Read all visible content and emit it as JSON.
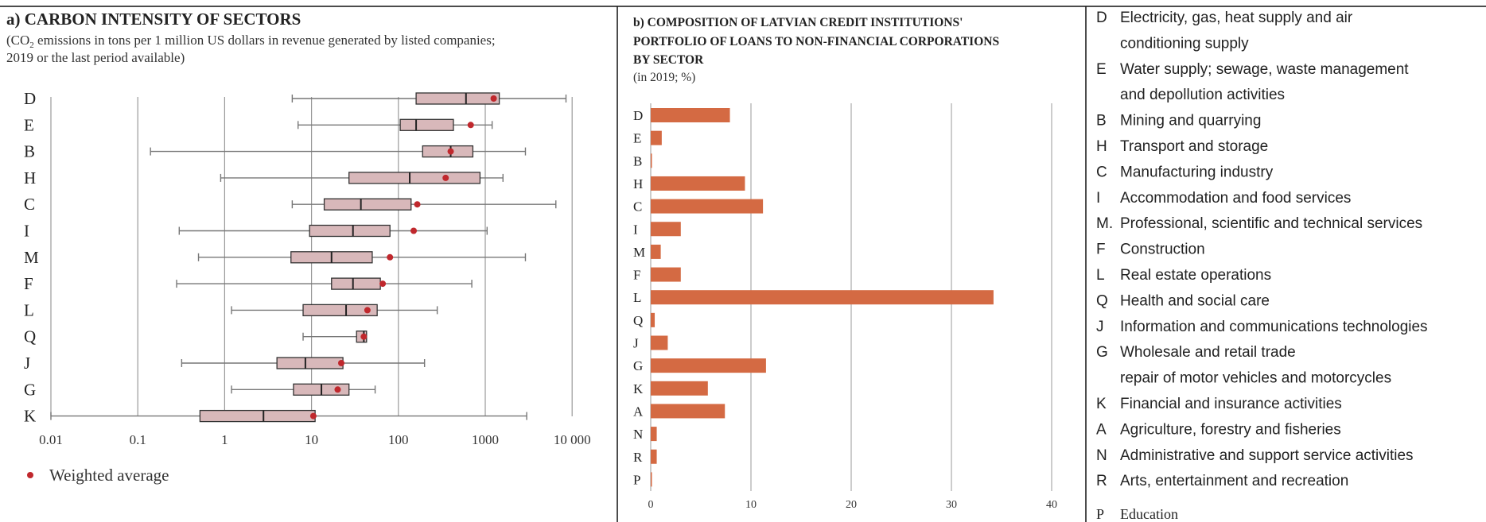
{
  "chart_data": [
    {
      "type": "boxplot",
      "title": "a) CARBON INTENSITY OF SECTORS",
      "subtitle_line1_prefix": "(CO",
      "subtitle_line1_sub": "2",
      "subtitle_line1_suffix": " emissions in tons per 1 million US dollars in revenue generated by listed companies;",
      "subtitle_line2": "2019 or the last period available)",
      "x_scale": "log",
      "xlim": [
        0.01,
        10000
      ],
      "x_ticks": [
        0.01,
        0.1,
        1,
        10,
        100,
        1000,
        10000
      ],
      "x_tick_labels": [
        "0.01",
        "0.1",
        "1",
        "10",
        "100",
        "1000",
        "10 000"
      ],
      "grid": "vertical",
      "legend": {
        "marker": "•",
        "label": "Weighted average",
        "position": "bottom-left"
      },
      "colors": {
        "box_fill": "#d8b8ba",
        "box_stroke": "#333333",
        "whisker": "#777777",
        "average": "#c0282d",
        "grid": "#999999"
      },
      "categories": [
        "D",
        "E",
        "B",
        "H",
        "C",
        "I",
        "M",
        "F",
        "L",
        "Q",
        "J",
        "G",
        "K"
      ],
      "boxes": [
        {
          "min": 6,
          "q1": 160,
          "median": 600,
          "q3": 1450,
          "max": 8500,
          "avg": 1250
        },
        {
          "min": 7,
          "q1": 105,
          "median": 160,
          "q3": 430,
          "max": 1200,
          "avg": 680
        },
        {
          "min": 0.14,
          "q1": 190,
          "median": 400,
          "q3": 720,
          "max": 2900,
          "avg": 400
        },
        {
          "min": 0.9,
          "q1": 27,
          "median": 135,
          "q3": 870,
          "max": 1600,
          "avg": 350
        },
        {
          "min": 6,
          "q1": 14,
          "median": 37,
          "q3": 140,
          "max": 6500,
          "avg": 165
        },
        {
          "min": 0.3,
          "q1": 9.5,
          "median": 30,
          "q3": 80,
          "max": 1050,
          "avg": 150
        },
        {
          "min": 0.5,
          "q1": 5.8,
          "median": 17,
          "q3": 50,
          "max": 2900,
          "avg": 80
        },
        {
          "min": 0.28,
          "q1": 17,
          "median": 30,
          "q3": 62,
          "max": 700,
          "avg": 66
        },
        {
          "min": 1.2,
          "q1": 8,
          "median": 25,
          "q3": 57,
          "max": 280,
          "avg": 44
        },
        {
          "min": 8,
          "q1": 33,
          "median": 40,
          "q3": 43,
          "max": 43,
          "avg": 40
        },
        {
          "min": 0.32,
          "q1": 4,
          "median": 8.5,
          "q3": 23,
          "max": 200,
          "avg": 22
        },
        {
          "min": 1.2,
          "q1": 6.2,
          "median": 13,
          "q3": 27,
          "max": 54,
          "avg": 20
        },
        {
          "min": 0.01,
          "q1": 0.52,
          "median": 2.8,
          "q3": 11,
          "max": 3000,
          "avg": 10.5
        }
      ]
    },
    {
      "type": "bar",
      "orientation": "horizontal",
      "title_line1": "b) COMPOSITION OF LATVIAN CREDIT INSTITUTIONS'",
      "title_line2": "PORTFOLIO OF LOANS TO NON-FINANCIAL CORPORATIONS",
      "title_line3": "BY SECTOR",
      "subtitle": "(in 2019; %)",
      "categories": [
        "D",
        "E",
        "B",
        "H",
        "C",
        "I",
        "M",
        "F",
        "L",
        "Q",
        "J",
        "G",
        "K",
        "A",
        "N",
        "R",
        "P"
      ],
      "values": [
        7.9,
        1.1,
        0.1,
        9.4,
        11.2,
        3.0,
        1.0,
        3.0,
        34.2,
        0.4,
        1.7,
        11.5,
        5.7,
        7.4,
        0.6,
        0.6,
        0.1
      ],
      "xlim": [
        0,
        40
      ],
      "x_ticks": [
        0,
        10,
        20,
        30,
        40
      ],
      "x_tick_labels": [
        "0",
        "10",
        "20",
        "30",
        "40"
      ],
      "grid": "vertical",
      "colors": {
        "bar": "#d46a43",
        "grid": "#aaaaaa"
      }
    }
  ],
  "legend_panel": {
    "items": [
      {
        "code": "D",
        "lines": [
          "Electricity, gas, heat supply and air",
          "conditioning supply"
        ]
      },
      {
        "code": "E",
        "lines": [
          "Water supply; sewage, waste management",
          "and depollution activities"
        ]
      },
      {
        "code": "B",
        "lines": [
          "Mining and quarrying"
        ]
      },
      {
        "code": "H",
        "lines": [
          "Transport and storage"
        ]
      },
      {
        "code": "C",
        "lines": [
          "Manufacturing industry"
        ]
      },
      {
        "code": "I",
        "lines": [
          "Accommodation and food services"
        ]
      },
      {
        "code": "M.",
        "lines": [
          "Professional, scientific and technical services"
        ]
      },
      {
        "code": "F",
        "lines": [
          "Construction"
        ]
      },
      {
        "code": "L",
        "lines": [
          "Real estate operations"
        ]
      },
      {
        "code": "Q",
        "lines": [
          "Health and social care"
        ]
      },
      {
        "code": "J",
        "lines": [
          "Information and communications technologies"
        ]
      },
      {
        "code": "G",
        "lines": [
          "Wholesale and retail trade",
          "repair of motor vehicles and motorcycles"
        ]
      },
      {
        "code": "K",
        "lines": [
          "Financial and insurance activities"
        ]
      },
      {
        "code": "A",
        "lines": [
          "Agriculture, forestry and fisheries"
        ]
      },
      {
        "code": "N",
        "lines": [
          "Administrative and support service activities"
        ]
      },
      {
        "code": "R",
        "lines": [
          "Arts, entertainment and recreation"
        ]
      }
    ],
    "last_item": {
      "code": "P",
      "label": "Education"
    }
  }
}
